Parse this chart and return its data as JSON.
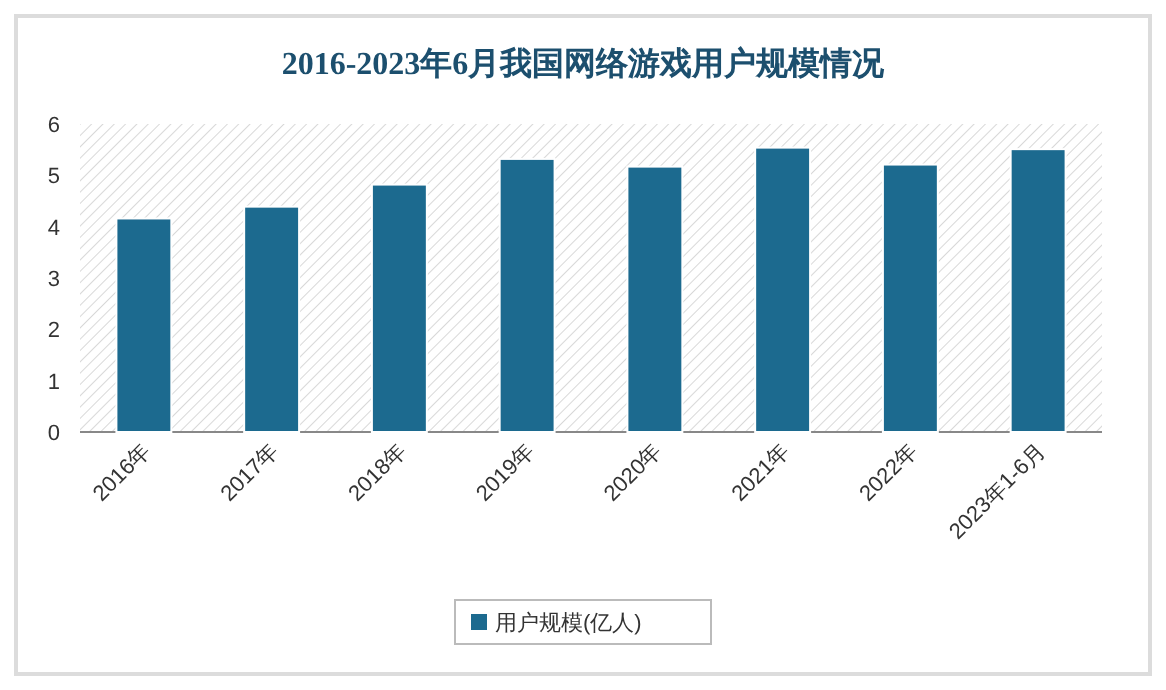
{
  "chart_data": {
    "type": "bar",
    "title": "2016-2023年6月我国网络游戏用户规模情况",
    "categories": [
      "2016年",
      "2017年",
      "2018年",
      "2019年",
      "2020年",
      "2021年",
      "2022年",
      "2023年1-6月"
    ],
    "series": [
      {
        "name": "用户规模(亿人)",
        "color": "#1c6a8f",
        "values": [
          4.16,
          4.39,
          4.82,
          5.32,
          5.17,
          5.54,
          5.21,
          5.51
        ]
      }
    ],
    "ylim": [
      0,
      6
    ],
    "yticks": [
      0,
      1,
      2,
      3,
      4,
      5,
      6
    ],
    "legend": "bottom"
  }
}
